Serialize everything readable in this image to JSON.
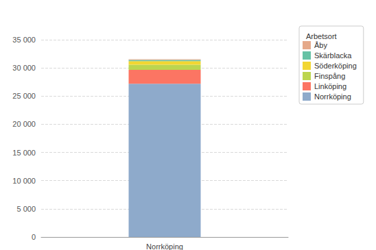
{
  "chart_data": {
    "type": "bar",
    "stacked": true,
    "grid": true,
    "legend": "top-right",
    "legend_title": "Arbetsort",
    "categories": [
      "Norrköping"
    ],
    "series": [
      {
        "name": "Norrköping",
        "color": "#8eaacb",
        "values": [
          27200
        ]
      },
      {
        "name": "Linköping",
        "color": "#fc7563",
        "values": [
          2450
        ]
      },
      {
        "name": "Finspång",
        "color": "#bcd54f",
        "values": [
          900
        ]
      },
      {
        "name": "Söderköping",
        "color": "#f2d632",
        "values": [
          650
        ]
      },
      {
        "name": "Skärblacka",
        "color": "#66c2a5",
        "values": [
          200
        ]
      },
      {
        "name": "Åby",
        "color": "#e5a98a",
        "values": [
          150
        ]
      }
    ],
    "ylim": [
      0,
      35000
    ],
    "yticks": [
      0,
      {
        "value": 5000,
        "label": "5 000"
      },
      {
        "value": 10000,
        "label": "10 000"
      },
      {
        "value": 15000,
        "label": "15 000"
      },
      {
        "value": 20000,
        "label": "20 000"
      },
      {
        "value": 25000,
        "label": "25 000"
      },
      {
        "value": 30000,
        "label": "30 000"
      },
      {
        "value": 35000,
        "label": "35 000"
      }
    ]
  }
}
